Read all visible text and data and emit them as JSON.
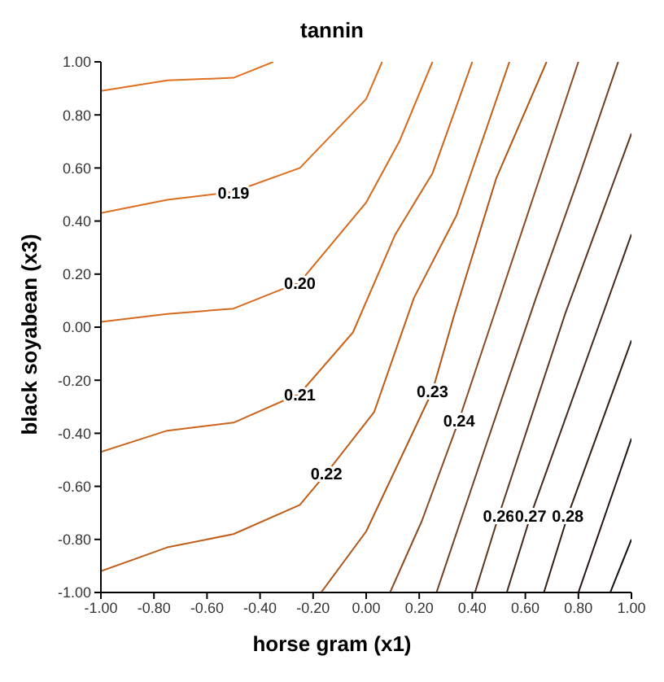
{
  "chart_data": {
    "type": "line",
    "title": "tannin",
    "xlabel": "horse gram (x1)",
    "ylabel": "black soyabean (x3)",
    "xlim": [
      -1,
      1
    ],
    "ylim": [
      -1,
      1
    ],
    "xticks": [
      {
        "value": -1,
        "label": "-1.00"
      },
      {
        "value": -0.8,
        "label": "-0.80"
      },
      {
        "value": -0.6,
        "label": "-0.60"
      },
      {
        "value": -0.4,
        "label": "-0.40"
      },
      {
        "value": -0.2,
        "label": "-0.20"
      },
      {
        "value": 0,
        "label": "0.00"
      },
      {
        "value": 0.2,
        "label": "0.20"
      },
      {
        "value": 0.4,
        "label": "0.40"
      },
      {
        "value": 0.6,
        "label": "0.60"
      },
      {
        "value": 0.8,
        "label": "0.80"
      },
      {
        "value": 1,
        "label": "1.00"
      }
    ],
    "yticks": [
      {
        "value": -1,
        "label": "-1.00"
      },
      {
        "value": -0.8,
        "label": "-0.80"
      },
      {
        "value": -0.6,
        "label": "-0.60"
      },
      {
        "value": -0.4,
        "label": "-0.40"
      },
      {
        "value": -0.2,
        "label": "-0.20"
      },
      {
        "value": 0,
        "label": "0.00"
      },
      {
        "value": 0.2,
        "label": "0.20"
      },
      {
        "value": 0.4,
        "label": "0.40"
      },
      {
        "value": 0.6,
        "label": "0.60"
      },
      {
        "value": 0.8,
        "label": "0.80"
      },
      {
        "value": 1,
        "label": "1.00"
      }
    ],
    "grid": false,
    "legend": false,
    "marker": "none",
    "line_style": "solid",
    "series": [
      {
        "color": "#e0701f",
        "x": [
          -1,
          -0.75,
          -0.5,
          -0.35
        ],
        "values": [
          0.89,
          0.93,
          0.94,
          1.0
        ]
      },
      {
        "name": "0.19",
        "color": "#dc6d1e",
        "x": [
          -1,
          -0.75,
          -0.5,
          -0.25,
          0,
          0.06
        ],
        "values": [
          0.43,
          0.48,
          0.51,
          0.6,
          0.86,
          1.0
        ]
      },
      {
        "name": "0.20",
        "color": "#d5691c",
        "x": [
          -1,
          -0.75,
          -0.5,
          -0.25,
          0,
          0.125,
          0.25
        ],
        "values": [
          0.02,
          0.05,
          0.07,
          0.17,
          0.47,
          0.7,
          1.0
        ]
      },
      {
        "name": "0.21",
        "color": "#cb641a",
        "x": [
          -1,
          -0.75,
          -0.5,
          -0.25,
          -0.05,
          0.11,
          0.25,
          0.4
        ],
        "values": [
          -0.47,
          -0.39,
          -0.36,
          -0.25,
          -0.02,
          0.35,
          0.58,
          1.0
        ]
      },
      {
        "name": "0.22",
        "color": "#bf5e18",
        "x": [
          -1,
          -0.75,
          -0.5,
          -0.25,
          -0.15,
          0.03,
          0.18,
          0.34,
          0.54
        ],
        "values": [
          -0.92,
          -0.83,
          -0.78,
          -0.67,
          -0.55,
          -0.32,
          0.11,
          0.42,
          1.0
        ]
      },
      {
        "name": "0.23",
        "color": "#ae5516",
        "x": [
          -0.17,
          0,
          0.25,
          0.33,
          0.49,
          0.68
        ],
        "values": [
          -1,
          -0.77,
          -0.24,
          0.04,
          0.56,
          1.0
        ]
      },
      {
        "name": "0.24",
        "color": "#8a4a20",
        "x": [
          0.09,
          0.21,
          0.35,
          0.48,
          0.64,
          0.8
        ],
        "values": [
          -1,
          -0.73,
          -0.35,
          0.04,
          0.52,
          1.0
        ]
      },
      {
        "color": "#70401f",
        "x": [
          0.265,
          0.45,
          0.64,
          0.8,
          0.95
        ],
        "values": [
          -1,
          -0.45,
          0.11,
          0.56,
          1.0
        ]
      },
      {
        "name": "0.26",
        "color": "#5a3520",
        "x": [
          0.41,
          0.5,
          0.75,
          1
        ],
        "values": [
          -1,
          -0.71,
          0.05,
          0.73
        ]
      },
      {
        "name": "0.27",
        "color": "#44291a",
        "x": [
          0.53,
          0.62,
          1
        ],
        "values": [
          -1,
          -0.71,
          0.35
        ]
      },
      {
        "name": "0.28",
        "color": "#332015",
        "x": [
          0.67,
          0.76,
          1
        ],
        "values": [
          -1,
          -0.71,
          -0.05
        ]
      },
      {
        "color": "#221510",
        "x": [
          0.8,
          1
        ],
        "values": [
          -1,
          -0.42
        ]
      },
      {
        "color": "#111111",
        "x": [
          0.92,
          1
        ],
        "values": [
          -1,
          -0.8
        ]
      }
    ]
  }
}
